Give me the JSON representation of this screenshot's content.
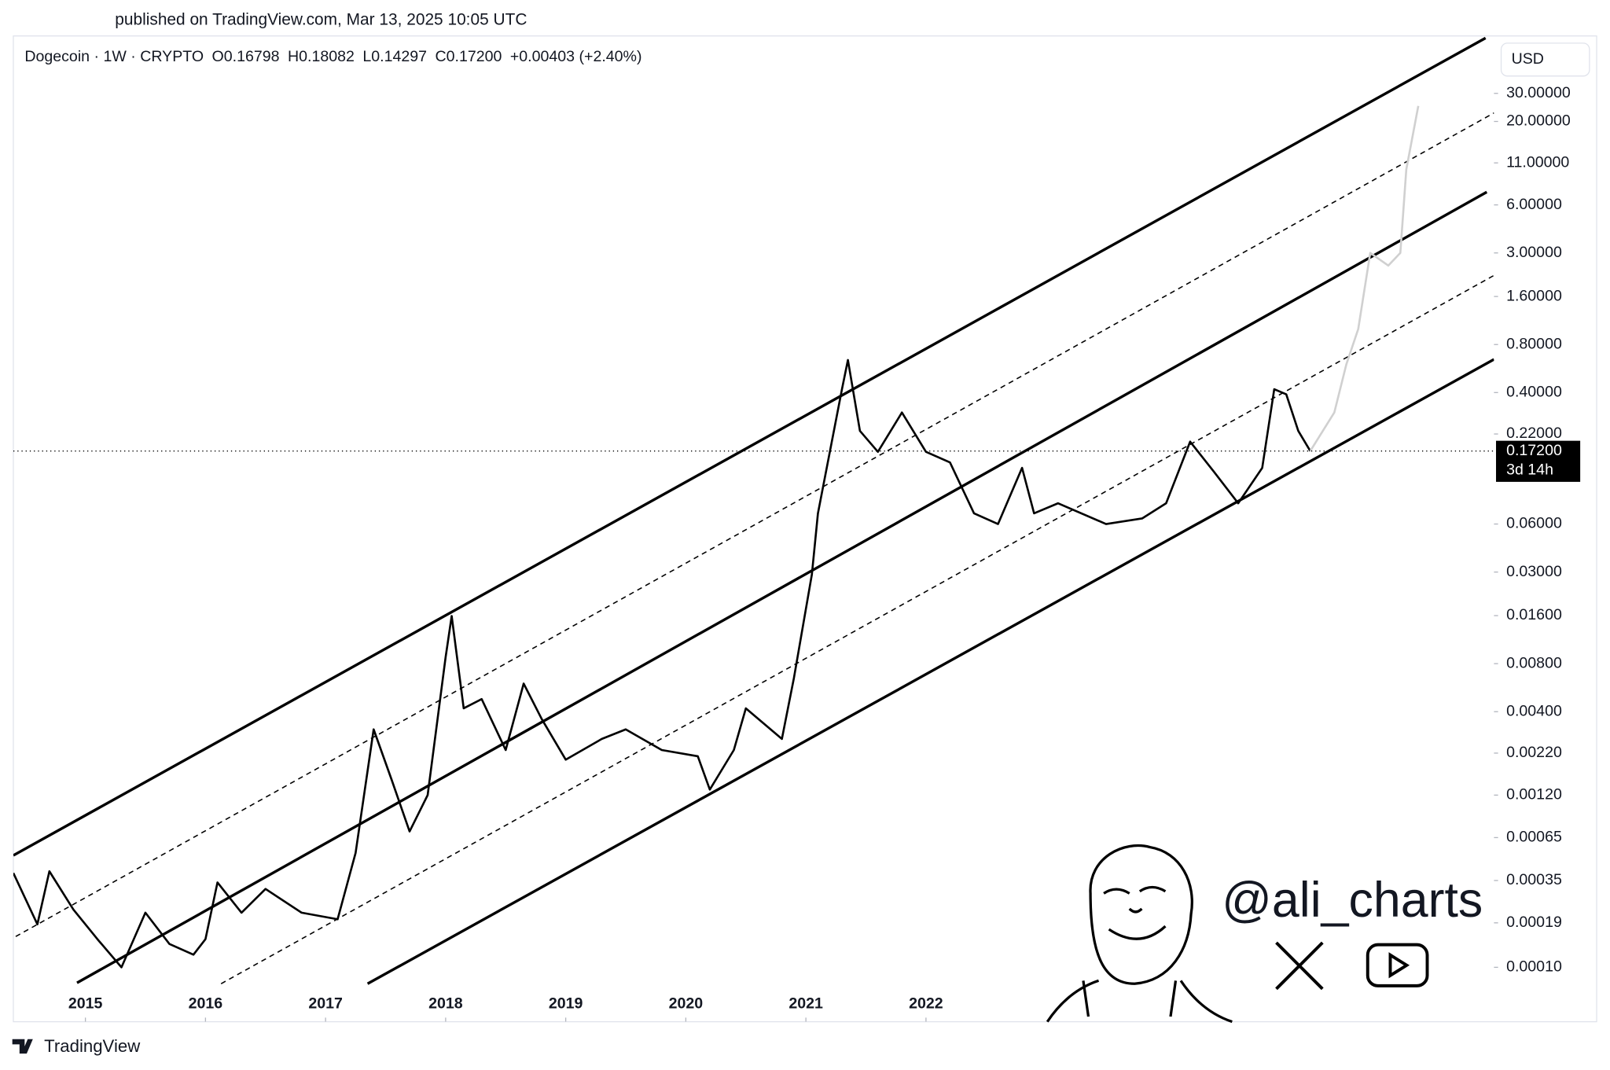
{
  "chart_data": {
    "type": "line",
    "published": "published on TradingView.com, Mar 13, 2025 10:05 UTC",
    "symbol": "Dogecoin · 1W · CRYPTO",
    "open": "O0.16798",
    "high": "H0.18082",
    "low": "L0.14297",
    "close": "C0.17200",
    "change": "+0.00403 (+2.40%)",
    "currency": "USD",
    "watermark": "@ali_charts",
    "brand": "TradingView",
    "log_scale": true,
    "grid": false,
    "xlim": [
      2014.4,
      2026.73
    ],
    "xticks": [
      2015,
      2016,
      2017,
      2018,
      2019,
      2020,
      2021,
      2022
    ],
    "ylim": [
      4.56e-05,
      68.7
    ],
    "yticks": [
      {
        "value": 0.0001,
        "label": "0.00010"
      },
      {
        "value": 0.00019,
        "label": "0.00019"
      },
      {
        "value": 0.00035,
        "label": "0.00035"
      },
      {
        "value": 0.00065,
        "label": "0.00065"
      },
      {
        "value": 0.0012,
        "label": "0.00120"
      },
      {
        "value": 0.0022,
        "label": "0.00220"
      },
      {
        "value": 0.004,
        "label": "0.00400"
      },
      {
        "value": 0.008,
        "label": "0.00800"
      },
      {
        "value": 0.016,
        "label": "0.01600"
      },
      {
        "value": 0.03,
        "label": "0.03000"
      },
      {
        "value": 0.06,
        "label": "0.06000"
      },
      {
        "value": 0.22,
        "label": "0.22000"
      },
      {
        "value": 0.4,
        "label": "0.40000"
      },
      {
        "value": 0.8,
        "label": "0.80000"
      },
      {
        "value": 1.6,
        "label": "1.60000"
      },
      {
        "value": 3,
        "label": "3.00000"
      },
      {
        "value": 6,
        "label": "6.00000"
      },
      {
        "value": 11,
        "label": "11.00000"
      },
      {
        "value": 20,
        "label": "20.00000"
      },
      {
        "value": 30,
        "label": "30.00000"
      }
    ],
    "last_price": {
      "value": 0.172,
      "label": "0.17200"
    },
    "countdown": "3d 14h",
    "series": [
      {
        "color": "#000000",
        "x": [
          2014.4,
          2014.6,
          2014.7,
          2014.9,
          2015.1,
          2015.3,
          2015.5,
          2015.7,
          2015.9,
          2016.0,
          2016.1,
          2016.3,
          2016.5,
          2016.8,
          2017.1,
          2017.25,
          2017.4,
          2017.55,
          2017.7,
          2017.85,
          2018.0,
          2018.05,
          2018.15,
          2018.3,
          2018.5,
          2018.65,
          2018.8,
          2019.0,
          2019.3,
          2019.5,
          2019.8,
          2020.1,
          2020.2,
          2020.4,
          2020.5,
          2020.8,
          2020.9,
          2021.05,
          2021.1,
          2021.3,
          2021.35,
          2021.45,
          2021.6,
          2021.8,
          2022.0,
          2022.2,
          2022.4,
          2022.6,
          2022.8,
          2022.9,
          2023.1,
          2023.5,
          2023.8,
          2024.0,
          2024.2,
          2024.4,
          2024.6,
          2024.8,
          2024.9,
          2025.0,
          2025.1,
          2025.2
        ],
        "values": [
          0.00039,
          0.000186,
          0.0004,
          0.00023,
          0.00015,
          0.0001,
          0.00022,
          0.00014,
          0.00012,
          0.00015,
          0.00034,
          0.00022,
          0.00031,
          0.00022,
          0.0002,
          0.00052,
          0.0031,
          0.0015,
          0.00071,
          0.0012,
          0.0088,
          0.0159,
          0.0042,
          0.0048,
          0.0023,
          0.006,
          0.0036,
          0.002,
          0.0027,
          0.0031,
          0.0023,
          0.0021,
          0.0013,
          0.0023,
          0.0042,
          0.0027,
          0.0065,
          0.029,
          0.07,
          0.42,
          0.64,
          0.23,
          0.17,
          0.3,
          0.17,
          0.146,
          0.07,
          0.06,
          0.135,
          0.07,
          0.081,
          0.06,
          0.065,
          0.081,
          0.197,
          0.127,
          0.081,
          0.135,
          0.42,
          0.39,
          0.23,
          0.172
        ]
      },
      {
        "color": "#d0d0d0",
        "x": [
          2025.2,
          2025.4,
          2025.5,
          2025.6,
          2025.7,
          2025.85,
          2025.95,
          2026.0,
          2026.1
        ],
        "values": [
          0.172,
          0.3,
          0.6,
          1.0,
          3,
          2.5,
          3,
          10,
          25
        ]
      }
    ],
    "channel_lines": [
      {
        "style": "solid",
        "x": [
          2014.4,
          2026.66
        ],
        "values": [
          0.000503,
          66.7
        ]
      },
      {
        "style": "dashed",
        "x": [
          2014.42,
          2026.73
        ],
        "values": [
          0.000156,
          22.6
        ]
      },
      {
        "style": "solid",
        "x": [
          2014.93,
          2026.67
        ],
        "values": [
          8e-05,
          7.22
        ]
      },
      {
        "style": "dashed",
        "x": [
          2016.13,
          2026.73
        ],
        "values": [
          7.89e-05,
          2.17
        ]
      },
      {
        "style": "solid",
        "x": [
          2017.35,
          2026.73
        ],
        "values": [
          7.89e-05,
          0.645
        ]
      }
    ]
  }
}
